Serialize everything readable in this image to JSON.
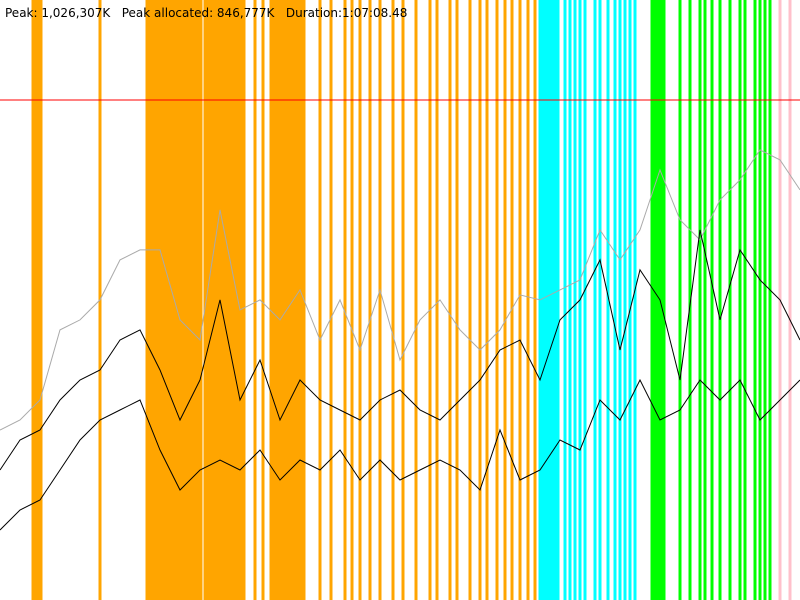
{
  "chart_data": {
    "type": "line",
    "title": "Peak: 1,026,307K   Peak allocated: 846,777K   Duration:1:07:08.48",
    "xlim": [
      0,
      4000
    ],
    "ylim": [
      0,
      1231568
    ],
    "peak_line": {
      "value": 1026307,
      "color": "#ff0000"
    },
    "events": [
      {
        "color": "#ffa500",
        "x": [
          165,
          175,
          185,
          195,
          205,
          500,
          735,
          745,
          755,
          765,
          780,
          795,
          810,
          825,
          840,
          855,
          870,
          885,
          900,
          915,
          930,
          945,
          960,
          975,
          990,
          1005,
          1025,
          1040,
          1055,
          1070,
          1085,
          1100,
          1115,
          1130,
          1145,
          1160,
          1175,
          1190,
          1205,
          1220,
          1275,
          1315,
          1355,
          1370,
          1385,
          1400,
          1415,
          1430,
          1445,
          1460,
          1475,
          1490,
          1505,
          1520,
          1600,
          1655,
          1725,
          1760,
          1800,
          1850,
          1900,
          1965,
          2015,
          2080,
          2150,
          2185,
          2250,
          2285,
          2350,
          2400,
          2435,
          2485,
          2525,
          2560,
          2600,
          2640,
          2675
        ]
      },
      {
        "color": "#00ffff",
        "x": [
          2700,
          2715,
          2730,
          2745,
          2760,
          2775,
          2790,
          2825,
          2850,
          2875,
          2900,
          2925,
          2975,
          3000,
          3040,
          3075,
          3100,
          3125,
          3150,
          3175
        ]
      },
      {
        "color": "#00ff00",
        "x": [
          3260,
          3275,
          3290,
          3305,
          3320,
          3400,
          3450,
          3500,
          3525,
          3560,
          3600,
          3650,
          3700,
          3725,
          3775,
          3800,
          3825,
          3850
        ]
      },
      {
        "color": "#ffc0cb",
        "x": [
          3900,
          3950
        ]
      }
    ],
    "x": [
      0,
      100,
      200,
      300,
      400,
      500,
      600,
      700,
      800,
      900,
      1000,
      1100,
      1200,
      1300,
      1400,
      1500,
      1600,
      1700,
      1800,
      1900,
      2000,
      2100,
      2200,
      2300,
      2400,
      2500,
      2600,
      2700,
      2800,
      2900,
      3000,
      3100,
      3200,
      3300,
      3400,
      3500,
      3600,
      3700,
      3800,
      3900,
      4000
    ],
    "series": [
      {
        "color": "#aaaaaa",
        "values": [
          349010,
          369540,
          410600,
          554310,
          574840,
          615900,
          698020,
          718550,
          718550,
          574840,
          533780,
          800670,
          595370,
          615900,
          574840,
          636430,
          533780,
          615900,
          513250,
          636430,
          492720,
          574840,
          615900,
          554310,
          513250,
          554310,
          626165,
          615900,
          636430,
          656960,
          759610,
          698020,
          759610,
          882790,
          780140,
          739080,
          821200,
          862260,
          923850,
          903320,
          841730
        ]
      },
      {
        "color": "#000000",
        "values": [
          266890,
          328480,
          349010,
          410600,
          451660,
          472190,
          533780,
          554310,
          472190,
          369540,
          451660,
          615900,
          410600,
          492720,
          369540,
          451660,
          410600,
          390070,
          369540,
          410600,
          431130,
          390070,
          369540,
          410600,
          451660,
          513250,
          533780,
          451660,
          574840,
          615900,
          698020,
          513250,
          677490,
          615900,
          451660,
          759610,
          574840,
          718550,
          656960,
          615900,
          533780
        ]
      },
      {
        "color": "#000000",
        "values": [
          143710,
          184770,
          205300,
          266890,
          328480,
          369540,
          390070,
          410600,
          307950,
          225830,
          266890,
          287420,
          266890,
          307950,
          246360,
          287420,
          266890,
          307950,
          246360,
          287420,
          246360,
          266890,
          287420,
          266890,
          225830,
          349010,
          246360,
          266890,
          328480,
          307950,
          410600,
          369540,
          451660,
          369540,
          390070,
          451660,
          410600,
          451660,
          369540,
          410600,
          451660
        ]
      }
    ]
  }
}
